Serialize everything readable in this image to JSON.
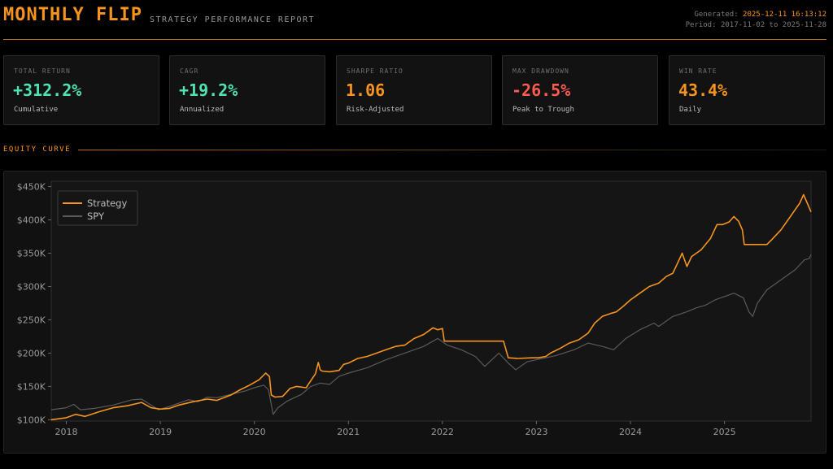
{
  "header": {
    "title": "MONTHLY FLIP",
    "subtitle": "STRATEGY PERFORMANCE REPORT",
    "generated_label": "Generated:",
    "generated_value": "2025-12-11 16:13:12",
    "period_label": "Period:",
    "period_value": "2017-11-02 to 2025-11-28"
  },
  "cards": [
    {
      "label": "TOTAL RETURN",
      "value": "+312.2%",
      "sub": "Cumulative",
      "color": "#4fe3b0"
    },
    {
      "label": "CAGR",
      "value": "+19.2%",
      "sub": "Annualized",
      "color": "#4fe3b0"
    },
    {
      "label": "SHARPE RATIO",
      "value": "1.06",
      "sub": "Risk-Adjusted",
      "color": "#f7941d"
    },
    {
      "label": "MAX DRAWDOWN",
      "value": "-26.5%",
      "sub": "Peak to Trough",
      "color": "#ff5b4f"
    },
    {
      "label": "WIN RATE",
      "value": "43.4%",
      "sub": "Daily",
      "color": "#f7941d"
    }
  ],
  "section_title": "EQUITY CURVE",
  "chart_data": {
    "type": "line",
    "xlim": [
      2017.84,
      2025.92
    ],
    "ylim": [
      98,
      458
    ],
    "xticks": [
      2018,
      2019,
      2020,
      2021,
      2022,
      2023,
      2024,
      2025
    ],
    "xtick_labels": [
      "2018",
      "2019",
      "2020",
      "2021",
      "2022",
      "2023",
      "2024",
      "2025"
    ],
    "yticks": [
      100,
      150,
      200,
      250,
      300,
      350,
      400,
      450
    ],
    "ytick_labels": [
      "$100K",
      "$150K",
      "$200K",
      "$250K",
      "$300K",
      "$350K",
      "$400K",
      "$450K"
    ],
    "legend_position": "top-left",
    "series": [
      {
        "name": "Strategy",
        "color": "#f7941d",
        "points": [
          [
            2017.84,
            100
          ],
          [
            2018.0,
            103
          ],
          [
            2018.1,
            108
          ],
          [
            2018.2,
            105
          ],
          [
            2018.35,
            112
          ],
          [
            2018.5,
            118
          ],
          [
            2018.65,
            121
          ],
          [
            2018.8,
            126
          ],
          [
            2018.9,
            118
          ],
          [
            2019.0,
            116
          ],
          [
            2019.1,
            117
          ],
          [
            2019.2,
            122
          ],
          [
            2019.35,
            127
          ],
          [
            2019.5,
            131
          ],
          [
            2019.6,
            129
          ],
          [
            2019.75,
            137
          ],
          [
            2019.85,
            145
          ],
          [
            2019.95,
            152
          ],
          [
            2020.05,
            160
          ],
          [
            2020.12,
            170
          ],
          [
            2020.16,
            165
          ],
          [
            2020.18,
            137
          ],
          [
            2020.22,
            134
          ],
          [
            2020.3,
            135
          ],
          [
            2020.38,
            147
          ],
          [
            2020.45,
            150
          ],
          [
            2020.55,
            148
          ],
          [
            2020.65,
            169
          ],
          [
            2020.68,
            186
          ],
          [
            2020.7,
            175
          ],
          [
            2020.72,
            173
          ],
          [
            2020.8,
            172
          ],
          [
            2020.9,
            174
          ],
          [
            2020.95,
            183
          ],
          [
            2021.0,
            185
          ],
          [
            2021.1,
            192
          ],
          [
            2021.2,
            195
          ],
          [
            2021.3,
            200
          ],
          [
            2021.4,
            205
          ],
          [
            2021.5,
            210
          ],
          [
            2021.6,
            212
          ],
          [
            2021.7,
            222
          ],
          [
            2021.8,
            228
          ],
          [
            2021.9,
            238
          ],
          [
            2021.95,
            235
          ],
          [
            2022.0,
            237
          ],
          [
            2022.02,
            218
          ],
          [
            2022.2,
            218
          ],
          [
            2022.4,
            218
          ],
          [
            2022.6,
            218
          ],
          [
            2022.65,
            218
          ],
          [
            2022.7,
            193
          ],
          [
            2022.8,
            192
          ],
          [
            2022.95,
            193
          ],
          [
            2023.02,
            193
          ],
          [
            2023.1,
            195
          ],
          [
            2023.15,
            200
          ],
          [
            2023.25,
            207
          ],
          [
            2023.35,
            215
          ],
          [
            2023.45,
            220
          ],
          [
            2023.55,
            230
          ],
          [
            2023.62,
            245
          ],
          [
            2023.7,
            255
          ],
          [
            2023.8,
            260
          ],
          [
            2023.85,
            262
          ],
          [
            2023.92,
            270
          ],
          [
            2024.0,
            280
          ],
          [
            2024.1,
            290
          ],
          [
            2024.2,
            300
          ],
          [
            2024.3,
            305
          ],
          [
            2024.38,
            315
          ],
          [
            2024.45,
            320
          ],
          [
            2024.5,
            335
          ],
          [
            2024.55,
            350
          ],
          [
            2024.6,
            330
          ],
          [
            2024.65,
            345
          ],
          [
            2024.75,
            355
          ],
          [
            2024.85,
            372
          ],
          [
            2024.92,
            393
          ],
          [
            2024.98,
            393
          ],
          [
            2025.05,
            397
          ],
          [
            2025.1,
            405
          ],
          [
            2025.15,
            398
          ],
          [
            2025.19,
            385
          ],
          [
            2025.21,
            363
          ],
          [
            2025.3,
            363
          ],
          [
            2025.4,
            363
          ],
          [
            2025.45,
            363
          ],
          [
            2025.5,
            370
          ],
          [
            2025.6,
            385
          ],
          [
            2025.7,
            405
          ],
          [
            2025.75,
            415
          ],
          [
            2025.8,
            425
          ],
          [
            2025.84,
            438
          ],
          [
            2025.88,
            425
          ],
          [
            2025.92,
            412
          ]
        ]
      },
      {
        "name": "SPY",
        "color": "#5a5a5a",
        "points": [
          [
            2017.84,
            115
          ],
          [
            2018.0,
            118
          ],
          [
            2018.08,
            123
          ],
          [
            2018.15,
            115
          ],
          [
            2018.3,
            117
          ],
          [
            2018.5,
            122
          ],
          [
            2018.7,
            130
          ],
          [
            2018.8,
            131
          ],
          [
            2018.9,
            122
          ],
          [
            2018.98,
            115
          ],
          [
            2019.1,
            120
          ],
          [
            2019.3,
            130
          ],
          [
            2019.4,
            127
          ],
          [
            2019.5,
            134
          ],
          [
            2019.6,
            133
          ],
          [
            2019.75,
            138
          ],
          [
            2019.9,
            143
          ],
          [
            2020.0,
            148
          ],
          [
            2020.1,
            152
          ],
          [
            2020.15,
            145
          ],
          [
            2020.2,
            108
          ],
          [
            2020.25,
            118
          ],
          [
            2020.35,
            128
          ],
          [
            2020.5,
            138
          ],
          [
            2020.6,
            150
          ],
          [
            2020.7,
            155
          ],
          [
            2020.8,
            153
          ],
          [
            2020.9,
            165
          ],
          [
            2021.0,
            170
          ],
          [
            2021.2,
            178
          ],
          [
            2021.4,
            190
          ],
          [
            2021.6,
            200
          ],
          [
            2021.8,
            210
          ],
          [
            2021.95,
            222
          ],
          [
            2022.05,
            212
          ],
          [
            2022.2,
            205
          ],
          [
            2022.35,
            195
          ],
          [
            2022.45,
            180
          ],
          [
            2022.6,
            200
          ],
          [
            2022.7,
            185
          ],
          [
            2022.78,
            175
          ],
          [
            2022.9,
            187
          ],
          [
            2023.0,
            190
          ],
          [
            2023.2,
            196
          ],
          [
            2023.4,
            205
          ],
          [
            2023.55,
            215
          ],
          [
            2023.7,
            210
          ],
          [
            2023.82,
            205
          ],
          [
            2023.95,
            222
          ],
          [
            2024.1,
            235
          ],
          [
            2024.25,
            245
          ],
          [
            2024.3,
            240
          ],
          [
            2024.45,
            255
          ],
          [
            2024.6,
            262
          ],
          [
            2024.7,
            268
          ],
          [
            2024.8,
            272
          ],
          [
            2024.9,
            280
          ],
          [
            2025.0,
            285
          ],
          [
            2025.1,
            290
          ],
          [
            2025.2,
            283
          ],
          [
            2025.26,
            262
          ],
          [
            2025.3,
            255
          ],
          [
            2025.35,
            275
          ],
          [
            2025.45,
            295
          ],
          [
            2025.6,
            310
          ],
          [
            2025.75,
            325
          ],
          [
            2025.85,
            340
          ],
          [
            2025.9,
            342
          ],
          [
            2025.92,
            348
          ]
        ]
      }
    ]
  }
}
